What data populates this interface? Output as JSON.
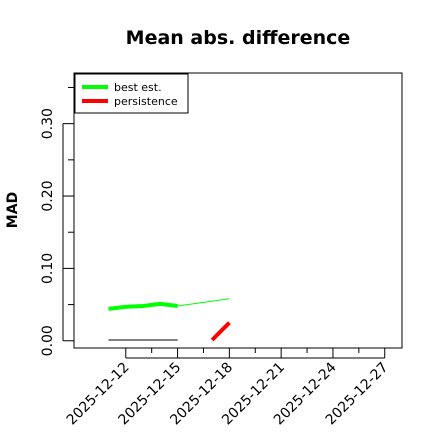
{
  "chart_data": {
    "type": "line",
    "title": "Mean abs. difference",
    "ylabel": "MAD",
    "xlabel": "",
    "ylim": [
      -0.01,
      0.37
    ],
    "xlim": [
      "2025-12-09",
      "2025-12-28"
    ],
    "x_ticks": [
      "2025-12-12",
      "2025-12-15",
      "2025-12-18",
      "2025-12-21",
      "2025-12-24",
      "2025-12-27"
    ],
    "y_ticks": [
      0.0,
      0.1,
      0.2,
      0.3
    ],
    "y_tick_labels": [
      "0.00",
      "0.10",
      "0.20",
      "0.30"
    ],
    "legend": {
      "position": "top-left",
      "entries": [
        {
          "name": "best est.",
          "color": "#00ff00"
        },
        {
          "name": "persistence",
          "color": "#ff0000"
        }
      ]
    },
    "series": [
      {
        "name": "best est.",
        "color": "#00ff00",
        "thick": true,
        "x": [
          "2025-12-11",
          "2025-12-12",
          "2025-12-13",
          "2025-12-14",
          "2025-12-15"
        ],
        "y": [
          0.044,
          0.047,
          0.048,
          0.051,
          0.048
        ]
      },
      {
        "name": "",
        "color": "#00ff00",
        "thick": false,
        "x": [
          "2025-12-15",
          "2025-12-18"
        ],
        "y": [
          0.048,
          0.058
        ]
      },
      {
        "name": "persistence",
        "color": "#ff0000",
        "thick": true,
        "x": [
          "2025-12-17",
          "2025-12-18"
        ],
        "y": [
          0.001,
          0.025
        ]
      },
      {
        "name": "",
        "color": "#000000",
        "thick": false,
        "x": [
          "2025-12-11",
          "2025-12-15"
        ],
        "y": [
          0.001,
          0.001
        ]
      }
    ]
  }
}
